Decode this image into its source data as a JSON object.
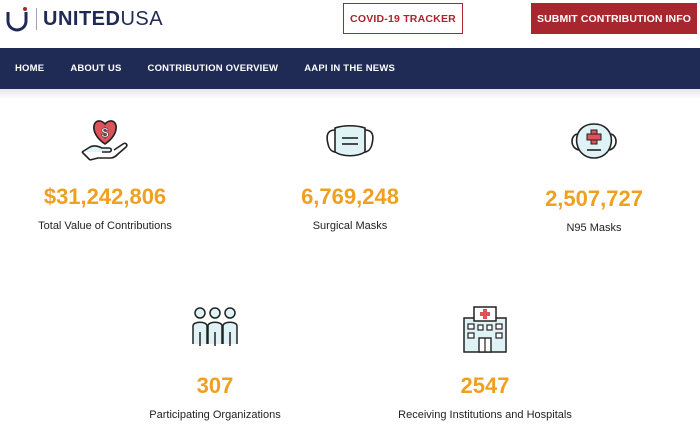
{
  "header": {
    "logo": {
      "brand_bold": "UNITED",
      "brand_light": "USA"
    },
    "covid_tracker_label": "COVID-19 TRACKER",
    "submit_label": "SUBMIT CONTRIBUTION INFO"
  },
  "nav": {
    "items": [
      {
        "label": "HOME"
      },
      {
        "label": "ABOUT US"
      },
      {
        "label": "CONTRIBUTION OVERVIEW"
      },
      {
        "label": "AAPI IN THE NEWS"
      }
    ]
  },
  "stats": [
    {
      "value": "$31,242,806",
      "label": "Total Value of Contributions",
      "icon": "donation-heart-icon"
    },
    {
      "value": "6,769,248",
      "label": "Surgical Masks",
      "icon": "surgical-mask-icon"
    },
    {
      "value": "2,507,727",
      "label": "N95 Masks",
      "icon": "n95-mask-icon"
    },
    {
      "value": "307",
      "label": "Participating Organizations",
      "icon": "people-group-icon"
    },
    {
      "value": "2547",
      "label": "Receiving Institutions and Hospitals",
      "icon": "hospital-icon"
    }
  ],
  "colors": {
    "navy": "#1f2a55",
    "crimson": "#a8262d",
    "accent_orange": "#f0a021",
    "icon_teal": "#dff3f7",
    "icon_red": "#e0525a"
  }
}
